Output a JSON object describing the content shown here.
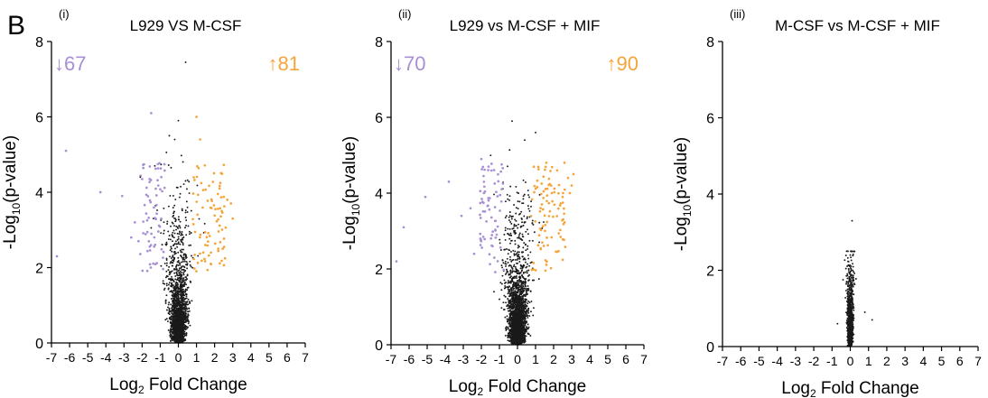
{
  "figure": {
    "panel_letter": "B",
    "colors": {
      "down": "#a88fd4",
      "up": "#f5a43a",
      "ns": "#1a1a1a"
    }
  },
  "chart_data": [
    {
      "type": "scatter",
      "panel_label": "(i)",
      "title": "L929 VS M-CSF",
      "xlabel_main": "Log",
      "xlabel_sub": "2",
      "xlabel_rest": " Fold Change",
      "ylabel_main": "-Log",
      "ylabel_sub": "10",
      "ylabel_rest": "(p-value)",
      "xlim": [
        -7,
        7
      ],
      "ylim": [
        0,
        8
      ],
      "xticks": [
        -7,
        -6,
        -5,
        -4,
        -3,
        -2,
        -1,
        0,
        1,
        2,
        3,
        4,
        5,
        6,
        7
      ],
      "yticks": [
        0,
        2,
        4,
        6,
        8
      ],
      "down_label": "↓67",
      "up_label": "↑81",
      "cloud": {
        "seed": 11,
        "n_ns": 2000,
        "n_down": 67,
        "n_up": 81,
        "spread": 0.45,
        "max_y": 5.4
      },
      "outliers": {
        "ns": [
          [
            0.4,
            7.45
          ],
          [
            0.0,
            5.9
          ],
          [
            -0.5,
            5.5
          ],
          [
            -2.1,
            4.4
          ],
          [
            -1.3,
            4.7
          ]
        ],
        "down": [
          [
            -6.2,
            5.1
          ],
          [
            -4.3,
            4.0
          ],
          [
            -6.7,
            2.3
          ],
          [
            -3.1,
            3.9
          ],
          [
            -2.6,
            2.8
          ],
          [
            -1.5,
            6.1
          ],
          [
            -2.2,
            2.7
          ],
          [
            -2.4,
            3.2
          ]
        ],
        "up": [
          [
            1.0,
            6.0
          ],
          [
            1.2,
            5.4
          ],
          [
            2.7,
            3.8
          ],
          [
            3.0,
            3.3
          ],
          [
            2.4,
            3.5
          ],
          [
            2.2,
            2.5
          ],
          [
            1.8,
            2.4
          ],
          [
            2.9,
            3.7
          ]
        ]
      }
    },
    {
      "type": "scatter",
      "panel_label": "(ii)",
      "title": "L929 vs M-CSF + MIF",
      "xlabel_main": "Log",
      "xlabel_sub": "2",
      "xlabel_rest": " Fold Change",
      "ylabel_main": "-Log",
      "ylabel_sub": "10",
      "ylabel_rest": "(p-value)",
      "xlim": [
        -7,
        7
      ],
      "ylim": [
        0,
        8
      ],
      "xticks": [
        -7,
        -6,
        -5,
        -4,
        -3,
        -2,
        -1,
        0,
        1,
        2,
        3,
        4,
        5,
        6,
        7
      ],
      "yticks": [
        0,
        2,
        4,
        6,
        8
      ],
      "down_label": "↓70",
      "up_label": "↑90",
      "cloud": {
        "seed": 29,
        "n_ns": 2400,
        "n_down": 70,
        "n_up": 90,
        "spread": 0.5,
        "max_y": 5.3
      },
      "outliers": {
        "ns": [
          [
            -0.3,
            5.9
          ],
          [
            0.4,
            5.4
          ],
          [
            -1.3,
            1.4
          ],
          [
            -1.0,
            1.2
          ],
          [
            1.0,
            5.6
          ]
        ],
        "down": [
          [
            -6.3,
            3.1
          ],
          [
            -6.7,
            2.2
          ],
          [
            -5.1,
            3.9
          ],
          [
            -3.8,
            4.3
          ],
          [
            -2.6,
            3.6
          ],
          [
            -2.4,
            2.4
          ],
          [
            -2.0,
            4.9
          ],
          [
            -1.6,
            4.7
          ],
          [
            -3.1,
            3.4
          ]
        ],
        "up": [
          [
            2.6,
            4.8
          ],
          [
            3.0,
            4.2
          ],
          [
            2.2,
            4.6
          ],
          [
            2.8,
            4.4
          ],
          [
            1.9,
            4.0
          ],
          [
            2.5,
            3.9
          ],
          [
            1.6,
            4.8
          ],
          [
            2.9,
            4.0
          ],
          [
            3.1,
            4.5
          ]
        ]
      }
    },
    {
      "type": "scatter",
      "panel_label": "(iii)",
      "title": "M-CSF vs M-CSF + MIF",
      "xlabel_main": "Log",
      "xlabel_sub": "2",
      "xlabel_rest": " Fold Change",
      "ylabel_main": "-Log",
      "ylabel_sub": "10",
      "ylabel_rest": "(p-value)",
      "xlim": [
        -7,
        7
      ],
      "ylim": [
        0,
        8
      ],
      "xticks": [
        -7,
        -6,
        -5,
        -4,
        -3,
        -2,
        -1,
        0,
        1,
        2,
        3,
        4,
        5,
        6,
        7
      ],
      "yticks": [
        0,
        2,
        4,
        6,
        8
      ],
      "down_label": "",
      "up_label": "",
      "cloud": {
        "seed": 53,
        "n_ns": 1000,
        "n_down": 0,
        "n_up": 0,
        "spread": 0.16,
        "max_y": 2.5
      },
      "outliers": {
        "ns": [
          [
            0.1,
            3.3
          ],
          [
            -0.2,
            2.5
          ],
          [
            0.0,
            2.4
          ],
          [
            1.2,
            0.7
          ],
          [
            -0.7,
            0.6
          ],
          [
            0.8,
            0.9
          ]
        ],
        "down": [],
        "up": []
      }
    }
  ]
}
